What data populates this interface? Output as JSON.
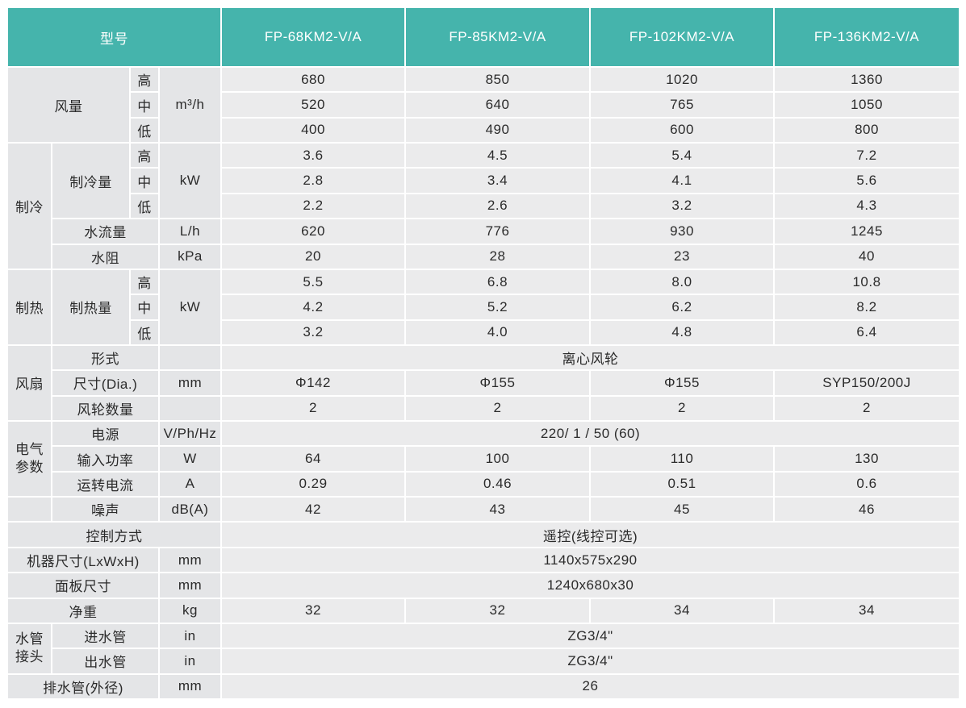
{
  "header": {
    "model_label": "型号",
    "models": [
      "FP-68KM2-V/A",
      "FP-85KM2-V/A",
      "FP-102KM2-V/A",
      "FP-136KM2-V/A"
    ]
  },
  "table": {
    "rows": [
      [
        "风量",
        "高",
        "m³/h",
        "680",
        "850",
        "1020",
        "1360"
      ],
      [
        "中",
        "520",
        "640",
        "765",
        "1050"
      ],
      [
        "低",
        "400",
        "490",
        "600",
        "800"
      ],
      [
        "制冷",
        "制冷量",
        "高",
        "kW",
        "3.6",
        "4.5",
        "5.4",
        "7.2"
      ],
      [
        "中",
        "2.8",
        "3.4",
        "4.1",
        "5.6"
      ],
      [
        "低",
        "2.2",
        "2.6",
        "3.2",
        "4.3"
      ],
      [
        "水流量",
        "L/h",
        "620",
        "776",
        "930",
        "1245"
      ],
      [
        "水阻",
        "kPa",
        "20",
        "28",
        "23",
        "40"
      ],
      [
        "制热",
        "制热量",
        "高",
        "kW",
        "5.5",
        "6.8",
        "8.0",
        "10.8"
      ],
      [
        "中",
        "4.2",
        "5.2",
        "6.2",
        "8.2"
      ],
      [
        "低",
        "3.2",
        "4.0",
        "4.8",
        "6.4"
      ],
      [
        "风扇",
        "形式",
        "离心风轮"
      ],
      [
        "尺寸(Dia.)",
        "mm",
        "Φ142",
        "Φ155",
        "Φ155",
        "SYP150/200J"
      ],
      [
        "风轮数量",
        "2",
        "2",
        "2",
        "2"
      ],
      [
        "电气参数",
        "电源",
        "V/Ph/Hz",
        "220/ 1 / 50 (60)"
      ],
      [
        "输入功率",
        "W",
        "64",
        "100",
        "110",
        "130"
      ],
      [
        "运转电流",
        "A",
        "0.29",
        "0.46",
        "0.51",
        "0.6"
      ],
      [
        "噪声",
        "dB(A)",
        "42",
        "43",
        "45",
        "46"
      ],
      [
        "控制方式",
        "遥控(线控可选)"
      ],
      [
        "机器尺寸(LxWxH)",
        "mm",
        "1140x575x290"
      ],
      [
        "面板尺寸",
        "mm",
        "1240x680x30"
      ],
      [
        "净重",
        "kg",
        "32",
        "32",
        "34",
        "34"
      ],
      [
        "水管接头",
        "进水管",
        "in",
        "ZG3/4\""
      ],
      [
        "出水管",
        "in",
        "ZG3/4\""
      ],
      [
        "排水管(外径)",
        "mm",
        "26"
      ]
    ]
  }
}
